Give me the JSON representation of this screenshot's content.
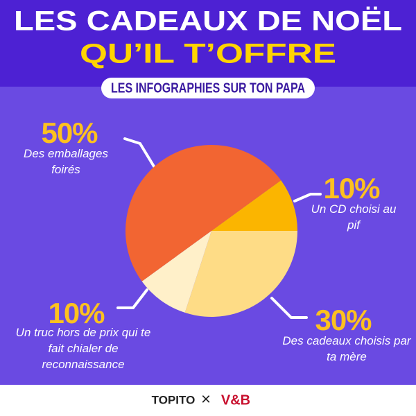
{
  "chart_data": {
    "type": "pie",
    "title": "LES CADEAUX DE NOËL",
    "subtitle": "QU’IL T’OFFRE",
    "tagline": "LES INFOGRAPHIES SUR TON PAPA",
    "categories": [
      "Des emballages foirés",
      "Un CD choisi au pif",
      "Des cadeaux choisis par ta mère",
      "Un truc hors de prix qui te fait chialer de reconnaissance"
    ],
    "values": [
      50,
      10,
      30,
      10
    ],
    "value_labels": [
      "50%",
      "10%",
      "30%",
      "10%"
    ],
    "colors": [
      "#f26532",
      "#fbb500",
      "#fedc86",
      "#fff0c9"
    ]
  },
  "footer": {
    "logos": [
      "TOPITO",
      "×",
      "V&B"
    ]
  }
}
